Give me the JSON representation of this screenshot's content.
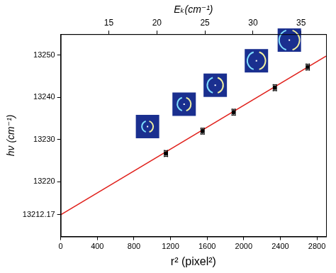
{
  "chart_data": {
    "type": "scatter",
    "x_label": "r² (pixel²)",
    "y_label": "hν (cm⁻¹)",
    "x2_label": "Eₖ(cm⁻¹)",
    "xlim": [
      0,
      2900
    ],
    "xticks": [
      0,
      400,
      800,
      1200,
      1600,
      2000,
      2400,
      2800
    ],
    "x2lim": [
      10,
      37.6
    ],
    "x2ticks": [
      15,
      20,
      25,
      30,
      35
    ],
    "ylim": [
      13207,
      13255
    ],
    "yticks": [
      13212.17,
      13220,
      13230,
      13240,
      13250
    ],
    "grid": false,
    "series": [
      {
        "type": "scatter",
        "marker": "square",
        "color": "#000000",
        "x": [
          1150,
          1550,
          1890,
          2340,
          2700
        ],
        "values": [
          13226.7,
          13232.0,
          13236.5,
          13242.3,
          13247.2
        ],
        "x_error": [
          18,
          18,
          18,
          18,
          18
        ],
        "y_error": [
          0.7,
          0.7,
          0.7,
          0.7,
          0.7
        ]
      },
      {
        "type": "line",
        "line_style": "solid",
        "color": "#e0201b",
        "x": [
          0,
          2900
        ],
        "values": [
          13212.17,
          13249.8
        ]
      }
    ]
  }
}
